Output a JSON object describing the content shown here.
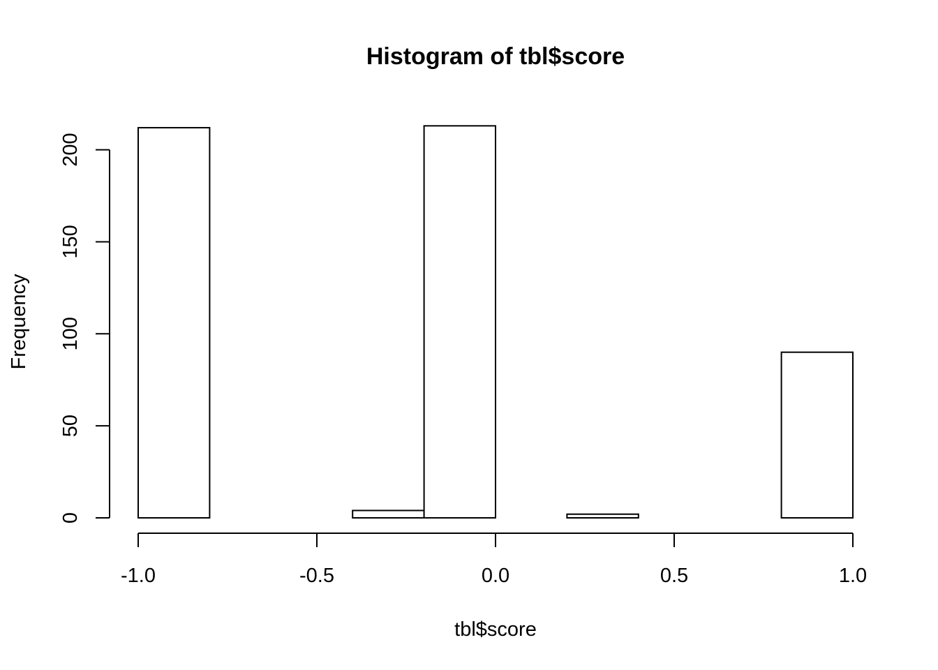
{
  "chart_data": {
    "type": "bar",
    "title": "Histogram of tbl$score",
    "xlabel": "tbl$score",
    "ylabel": "Frequency",
    "xlim": [
      -1.0,
      1.0
    ],
    "ylim": [
      0,
      213
    ],
    "x_ticks": [
      -1.0,
      -0.5,
      0.0,
      0.5,
      1.0
    ],
    "x_tick_labels": [
      "-1.0",
      "-0.5",
      "0.0",
      "0.5",
      "1.0"
    ],
    "y_ticks": [
      0,
      50,
      100,
      150,
      200
    ],
    "y_tick_labels": [
      "0",
      "50",
      "100",
      "150",
      "200"
    ],
    "bins": [
      {
        "start": -1.0,
        "end": -0.8,
        "count": 212
      },
      {
        "start": -0.8,
        "end": -0.6,
        "count": 0
      },
      {
        "start": -0.6,
        "end": -0.4,
        "count": 0
      },
      {
        "start": -0.4,
        "end": -0.2,
        "count": 4
      },
      {
        "start": -0.2,
        "end": 0.0,
        "count": 213
      },
      {
        "start": 0.0,
        "end": 0.2,
        "count": 0
      },
      {
        "start": 0.2,
        "end": 0.4,
        "count": 2
      },
      {
        "start": 0.4,
        "end": 0.6,
        "count": 0
      },
      {
        "start": 0.6,
        "end": 0.8,
        "count": 0
      },
      {
        "start": 0.8,
        "end": 1.0,
        "count": 90
      }
    ],
    "grid": false,
    "legend": "none"
  }
}
